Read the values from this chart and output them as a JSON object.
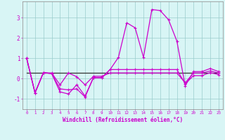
{
  "xlabel": "Windchill (Refroidissement éolien,°C)",
  "bg_color": "#d8f5f5",
  "line_color": "#cc00cc",
  "grid_color": "#99cccc",
  "spine_color": "#999999",
  "x_ticks": [
    0,
    1,
    2,
    3,
    4,
    5,
    6,
    7,
    8,
    9,
    10,
    11,
    12,
    13,
    14,
    15,
    16,
    17,
    18,
    19,
    20,
    21,
    22,
    23
  ],
  "y_ticks": [
    -1,
    0,
    1,
    2,
    3
  ],
  "xlim": [
    -0.5,
    23.5
  ],
  "ylim": [
    -1.5,
    3.8
  ],
  "series": [
    {
      "y": [
        1.0,
        -0.7,
        0.3,
        0.25,
        -0.65,
        -0.75,
        -0.3,
        -0.85,
        0.05,
        0.05,
        0.45,
        1.05,
        2.75,
        2.5,
        1.05,
        3.4,
        3.35,
        2.9,
        1.85,
        -0.35,
        0.35,
        0.35,
        0.5,
        0.35
      ],
      "color": "#cc00cc",
      "lw": 0.9,
      "marker": true
    },
    {
      "y": [
        1.0,
        -0.7,
        0.3,
        0.25,
        -0.5,
        -0.55,
        -0.5,
        -0.9,
        0.05,
        0.05,
        0.45,
        0.45,
        0.45,
        0.45,
        0.45,
        0.45,
        0.45,
        0.45,
        0.45,
        -0.25,
        0.15,
        0.15,
        0.3,
        0.2
      ],
      "color": "#cc00cc",
      "lw": 0.9,
      "marker": true
    },
    {
      "y": [
        1.0,
        -0.7,
        0.28,
        0.28,
        -0.3,
        0.28,
        0.1,
        -0.3,
        0.12,
        0.12,
        0.28,
        0.28,
        0.28,
        0.28,
        0.28,
        0.28,
        0.28,
        0.28,
        0.28,
        -0.2,
        0.28,
        0.28,
        0.38,
        0.28
      ],
      "color": "#cc00cc",
      "lw": 0.9,
      "marker": true
    },
    {
      "y": [
        0.28,
        0.28,
        0.28,
        0.28,
        0.28,
        0.28,
        0.28,
        0.28,
        0.28,
        0.28,
        0.28,
        0.28,
        0.28,
        0.28,
        0.28,
        0.28,
        0.28,
        0.28,
        0.28,
        0.28,
        0.28,
        0.28,
        0.28,
        0.28
      ],
      "color": "#333333",
      "lw": 0.9,
      "marker": false
    }
  ]
}
